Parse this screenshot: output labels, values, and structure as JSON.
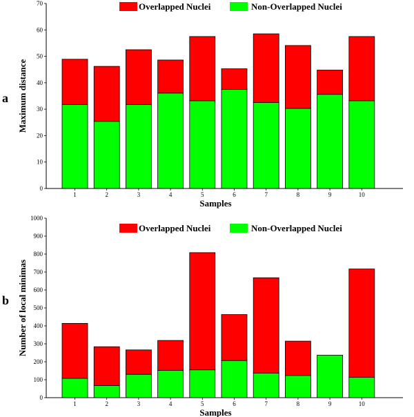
{
  "chart_data": [
    {
      "type": "bar",
      "stacked": true,
      "panel_label": "a",
      "categories": [
        "1",
        "2",
        "3",
        "4",
        "5",
        "6",
        "7",
        "8",
        "9",
        "10"
      ],
      "series": [
        {
          "name": "Non-Overlapped Nuclei",
          "color": "#00ff00",
          "values": [
            31.8,
            25.4,
            31.8,
            36.1,
            33.2,
            37.5,
            32.5,
            30.3,
            35.6,
            33.2
          ]
        },
        {
          "name": "Overlapped Nuclei",
          "color": "#ff0000",
          "values": [
            17.1,
            20.8,
            20.7,
            12.5,
            24.3,
            7.8,
            26.0,
            23.8,
            9.2,
            24.3
          ]
        }
      ],
      "xlabel": "Samples",
      "ylabel": "Maximum distance",
      "ylim": [
        0,
        70
      ],
      "yticks": [
        0,
        10,
        20,
        30,
        40,
        50,
        60,
        70
      ],
      "legend": "top-center",
      "grid": false
    },
    {
      "type": "bar",
      "stacked": true,
      "panel_label": "b",
      "categories": [
        "1",
        "2",
        "3",
        "4",
        "5",
        "6",
        "7",
        "8",
        "9",
        "10"
      ],
      "series": [
        {
          "name": "Non-Overlapped Nuclei",
          "color": "#00ff00",
          "values": [
            108,
            68,
            130,
            152,
            155,
            207,
            136,
            124,
            237,
            113
          ]
        },
        {
          "name": "Overlapped Nuclei",
          "color": "#ff0000",
          "values": [
            306,
            216,
            136,
            167,
            653,
            256,
            532,
            191,
            0,
            604
          ]
        }
      ],
      "xlabel": "Samples",
      "ylabel": "Number of local minimas",
      "ylim": [
        0,
        1000
      ],
      "yticks": [
        0,
        100,
        200,
        300,
        400,
        500,
        600,
        700,
        800,
        900,
        1000
      ],
      "legend": "top-center",
      "grid": false
    }
  ]
}
